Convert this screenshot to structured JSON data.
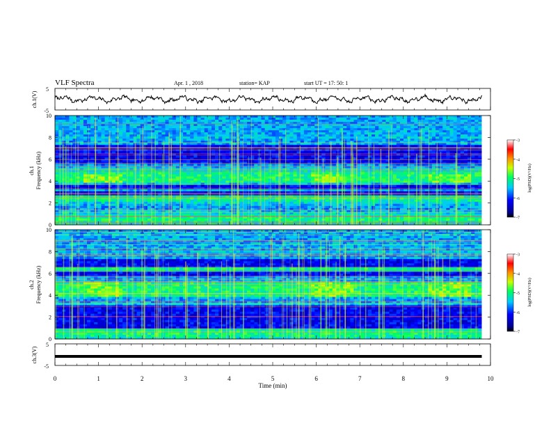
{
  "header": {
    "title": "VLF Spectra",
    "date": "Apr. 1  , 2018",
    "station": "station= KAP",
    "start": "start  UT =   17: 50: 1"
  },
  "chart_data": {
    "type": "multi-panel",
    "x_axis": {
      "label": "Time  (min)",
      "range": [
        0,
        10
      ],
      "ticks": [
        "0",
        "1",
        "2",
        "3",
        "4",
        "5",
        "6",
        "7",
        "8",
        "9",
        "10"
      ],
      "data_extent": [
        0,
        9.8
      ]
    },
    "panels": [
      {
        "type": "line",
        "ylabel": "ch.1(V)",
        "ylim": [
          -5,
          5
        ],
        "yticks": [
          "5",
          "-5"
        ],
        "description_values": {
          "mean": 0,
          "amplitude_range": [
            -2,
            2
          ]
        }
      },
      {
        "type": "heatmap",
        "ylabel": "ch.1",
        "ylabel2": "Frequency  (kHz)",
        "ylim": [
          0,
          10
        ],
        "yticks": [
          "0",
          "2",
          "4",
          "6",
          "8",
          "10"
        ],
        "colorbar": {
          "label": "log(PSD)(V²/Hz)",
          "range": [
            -7,
            -3
          ],
          "ticks": [
            "-3",
            "-4",
            "-5",
            "-6",
            "-7"
          ]
        },
        "seed": 11,
        "quiet_bands": [
          [
            5.6,
            7.3
          ],
          [
            3.2,
            3.6
          ],
          [
            2.6,
            3.0
          ]
        ],
        "hot_band": [
          3.8,
          4.6
        ]
      },
      {
        "type": "heatmap",
        "ylabel": "ch.2",
        "ylabel2": "Frequency  (kHz)",
        "ylim": [
          0,
          10
        ],
        "yticks": [
          "0",
          "2",
          "4",
          "6",
          "8",
          "10"
        ],
        "colorbar": {
          "label": "log(PSD)(V²/Hz)",
          "range": [
            -7,
            -3
          ],
          "ticks": [
            "-3",
            "-4",
            "-5",
            "-6",
            "-7"
          ]
        },
        "seed": 29,
        "quiet_bands": [
          [
            6.6,
            7.4
          ],
          [
            5.8,
            6.2
          ],
          [
            1.0,
            3.0
          ]
        ],
        "hot_band": [
          3.8,
          5.2
        ]
      },
      {
        "type": "line",
        "ylabel": "ch.3(V)",
        "ylim": [
          -5,
          5
        ],
        "yticks": [
          "5",
          "-5"
        ],
        "constant_value": -0.8
      }
    ]
  }
}
